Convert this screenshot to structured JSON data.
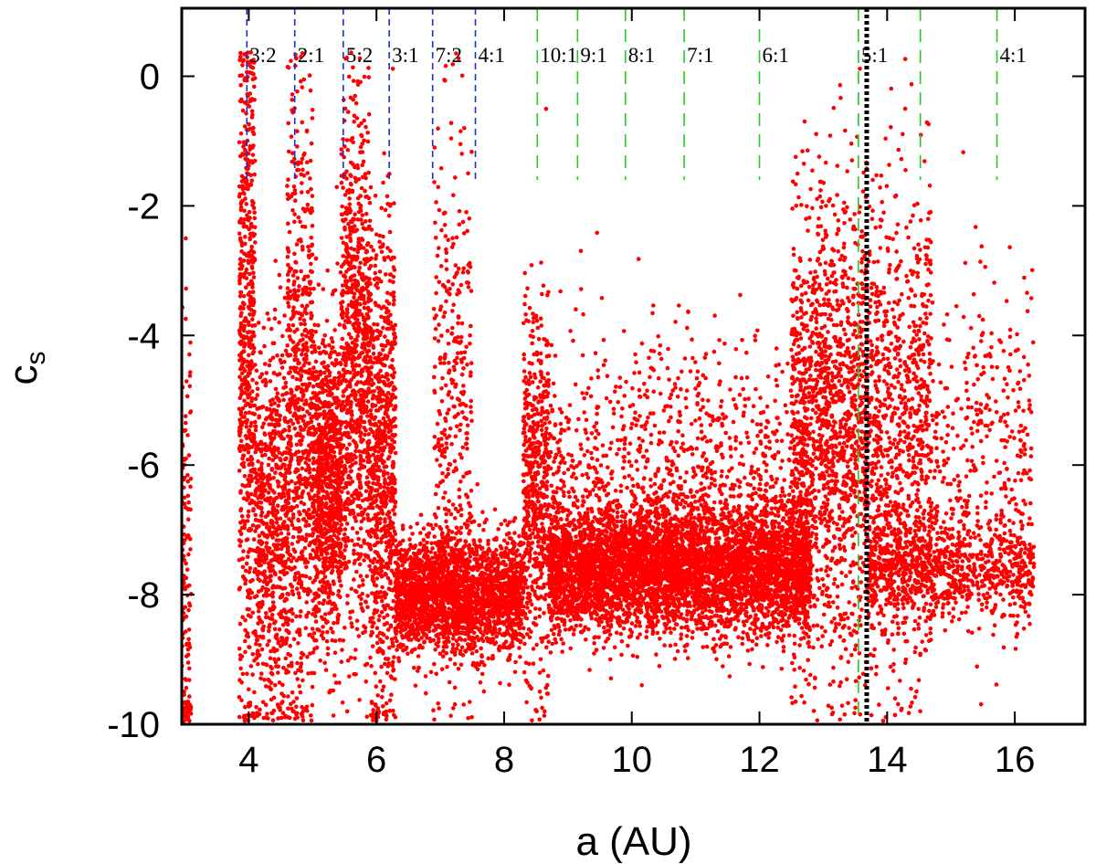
{
  "chart_data": {
    "type": "scatter",
    "title": "",
    "xlabel": "a (AU)",
    "ylabel": "c",
    "ylabel_subscript": "s",
    "xlim": [
      2.95,
      17.1
    ],
    "ylim": [
      -10,
      1.05
    ],
    "xticks": [
      4,
      6,
      8,
      10,
      12,
      14,
      16
    ],
    "yticks": [
      0,
      -2,
      -4,
      -6,
      -8,
      -10
    ],
    "grid": false,
    "legend": "none",
    "colors": {
      "points": "#ff0000",
      "inner_resonance_lines": "#1a2fd0",
      "outer_resonance_lines": "#22cc22",
      "marker_line": "#000000"
    },
    "resonance_lines": [
      {
        "label": "3:2",
        "a": 3.97,
        "group": "inner",
        "y_bottom": -1.6
      },
      {
        "label": "2:1",
        "a": 4.72,
        "group": "inner",
        "y_bottom": -1.6
      },
      {
        "label": "5:2",
        "a": 5.48,
        "group": "inner",
        "y_bottom": -1.6
      },
      {
        "label": "3:1",
        "a": 6.2,
        "group": "inner",
        "y_bottom": -1.6
      },
      {
        "label": "7:2",
        "a": 6.88,
        "group": "inner",
        "y_bottom": -1.6
      },
      {
        "label": "4:1",
        "a": 7.55,
        "group": "inner",
        "y_bottom": -1.6
      },
      {
        "label": "10:1",
        "a": 8.52,
        "group": "outer",
        "y_bottom": -1.6
      },
      {
        "label": "9:1",
        "a": 9.15,
        "group": "outer",
        "y_bottom": -1.6
      },
      {
        "label": "8:1",
        "a": 9.9,
        "group": "outer",
        "y_bottom": -1.6
      },
      {
        "label": "7:1",
        "a": 10.82,
        "group": "outer",
        "y_bottom": -1.6
      },
      {
        "label": "6:1",
        "a": 12.0,
        "group": "outer",
        "y_bottom": -1.6
      },
      {
        "label": "5:1",
        "a": 13.55,
        "group": "outer",
        "y_bottom": -10
      },
      {
        "label": "",
        "a": 14.52,
        "group": "outer",
        "y_bottom": -1.6
      },
      {
        "label": "4:1",
        "a": 15.72,
        "group": "outer",
        "y_bottom": -1.6
      }
    ],
    "marker_line": {
      "a": 13.68,
      "style": "dotted"
    },
    "density_structure": [
      {
        "a_min": 2.95,
        "a_max": 3.1,
        "y_mean": -8.0,
        "y_spread": 2.2,
        "weight": 140
      },
      {
        "a_min": 3.85,
        "a_max": 4.1,
        "y_mean": -4.5,
        "y_spread": 2.8,
        "weight": 600
      },
      {
        "a_min": 4.1,
        "a_max": 4.6,
        "y_mean": -7.0,
        "y_spread": 1.5,
        "weight": 700
      },
      {
        "a_min": 4.6,
        "a_max": 5.0,
        "y_mean": -5.5,
        "y_spread": 2.5,
        "weight": 700
      },
      {
        "a_min": 5.0,
        "a_max": 5.45,
        "y_mean": -6.3,
        "y_spread": 1.2,
        "weight": 900
      },
      {
        "a_min": 5.45,
        "a_max": 5.9,
        "y_mean": -4.5,
        "y_spread": 2.0,
        "weight": 900
      },
      {
        "a_min": 5.9,
        "a_max": 6.3,
        "y_mean": -6.2,
        "y_spread": 1.8,
        "weight": 800
      },
      {
        "a_min": 6.3,
        "a_max": 8.3,
        "y_mean": -8.0,
        "y_spread": 0.45,
        "weight": 2400
      },
      {
        "a_min": 6.9,
        "a_max": 7.5,
        "y_mean": -5.0,
        "y_spread": 2.2,
        "weight": 350
      },
      {
        "a_min": 8.3,
        "a_max": 8.7,
        "y_mean": -6.5,
        "y_spread": 1.4,
        "weight": 600
      },
      {
        "a_min": 8.7,
        "a_max": 12.8,
        "y_mean": -7.6,
        "y_spread": 0.5,
        "weight": 5200
      },
      {
        "a_min": 8.7,
        "a_max": 12.8,
        "y_mean": -6.0,
        "y_spread": 1.0,
        "weight": 900
      },
      {
        "a_min": 12.5,
        "a_max": 13.7,
        "y_mean": -5.5,
        "y_spread": 1.8,
        "weight": 1500
      },
      {
        "a_min": 13.7,
        "a_max": 14.7,
        "y_mean": -5.5,
        "y_spread": 1.9,
        "weight": 900
      },
      {
        "a_min": 13.7,
        "a_max": 16.3,
        "y_mean": -7.6,
        "y_spread": 0.4,
        "weight": 900
      },
      {
        "a_min": 14.7,
        "a_max": 16.3,
        "y_mean": -5.8,
        "y_spread": 1.4,
        "weight": 350
      }
    ]
  }
}
